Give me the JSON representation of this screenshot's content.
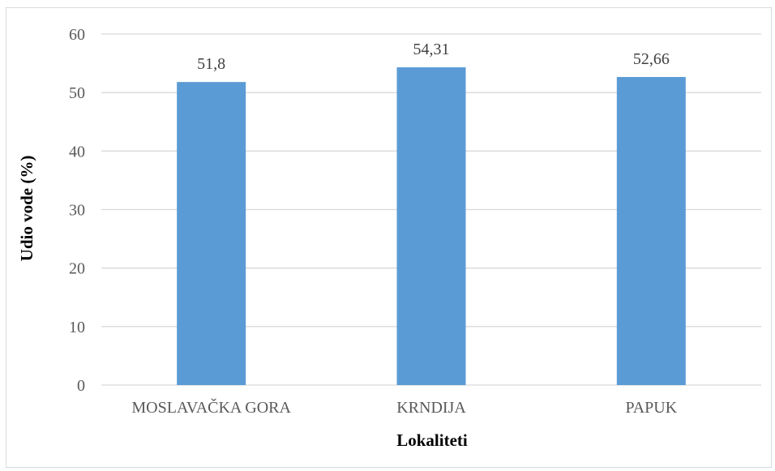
{
  "chart_data": {
    "type": "bar",
    "title": "",
    "xlabel": "Lokaliteti",
    "ylabel": "Udio vode (%)",
    "categories": [
      "MOSLAVAČKA GORA",
      "KRNDIJA",
      "PAPUK"
    ],
    "values": [
      51.8,
      54.31,
      52.66
    ],
    "data_labels": [
      "51,8",
      "54,31",
      "52,66"
    ],
    "ylim": [
      0,
      60
    ],
    "yticks": [
      0,
      10,
      20,
      30,
      40,
      50,
      60
    ],
    "grid": true,
    "legend": "none",
    "colors": {
      "bar": "#5b9bd5",
      "grid": "#d9d9d9",
      "tick_text": "#595959",
      "label_text": "#404040"
    }
  }
}
